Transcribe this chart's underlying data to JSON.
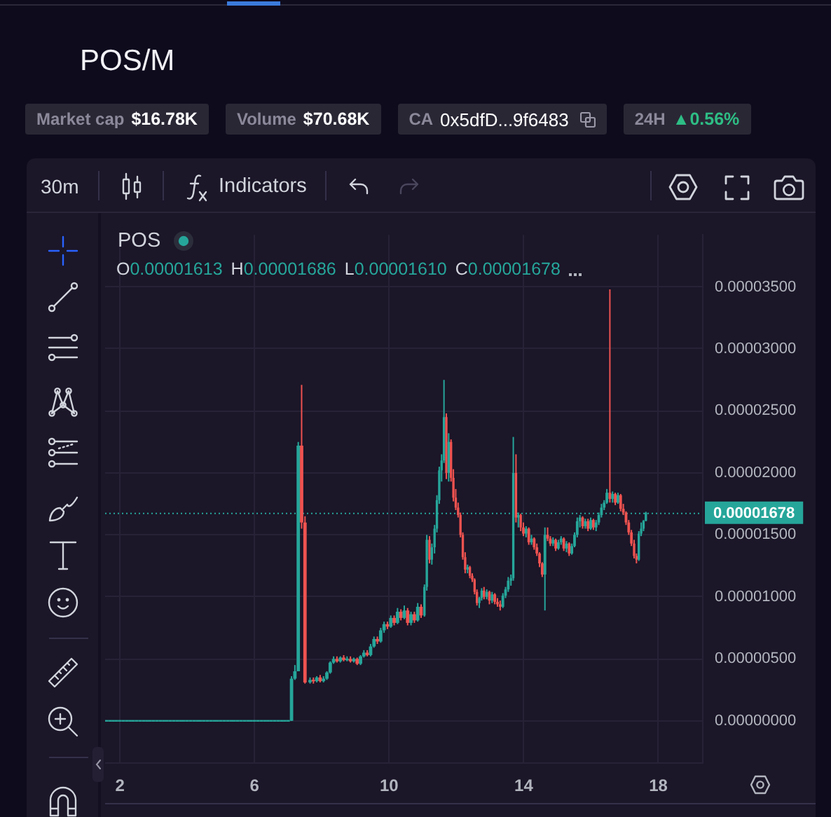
{
  "chart_data": {
    "type": "candlestick",
    "title": "POS/M",
    "annotations": [
      "Market cap",
      "$16.78K",
      "Volume",
      "$70.68K",
      "CA",
      "0x5dfD...9f6483",
      "24H",
      "▲0.56%",
      "30m",
      "Indicators",
      "POS",
      "O",
      "0.00001613",
      "H",
      "0.00001686",
      "L",
      "0.00001610",
      "C",
      "0.00001678"
    ],
    "x": [
      1.6,
      1.7,
      1.8,
      1.9,
      2.0,
      2.1,
      2.2,
      2.3,
      2.4,
      2.5,
      2.6,
      2.7,
      2.8,
      2.9,
      3.0,
      3.1,
      3.2,
      3.3,
      3.4,
      3.5,
      3.6,
      3.7,
      3.8,
      3.9,
      4.0,
      4.1,
      4.2,
      4.3,
      4.4,
      4.5,
      4.6,
      4.7,
      4.8,
      4.9,
      5.0,
      5.1,
      5.2,
      5.3,
      5.4,
      5.5,
      5.6,
      5.7,
      5.8,
      5.9,
      6.0,
      6.1,
      6.2,
      6.3,
      6.4,
      6.5,
      6.6,
      6.7,
      6.8,
      6.9,
      7.0,
      7.1,
      7.2,
      7.3,
      7.4,
      7.5,
      7.65,
      7.75,
      7.85,
      7.95,
      8.05,
      8.15,
      8.25,
      8.35,
      8.45,
      8.55,
      8.65,
      8.75,
      8.85,
      8.95,
      9.05,
      9.15,
      9.25,
      9.35,
      9.45,
      9.55,
      9.65,
      9.75,
      9.85,
      9.95,
      10.05,
      10.15,
      10.25,
      10.35,
      10.45,
      10.55,
      10.65,
      10.75,
      10.85,
      10.95,
      11.05,
      11.12,
      11.2,
      11.27,
      11.35,
      11.42,
      11.49,
      11.56,
      11.63,
      11.7,
      11.77,
      11.84,
      11.91,
      11.98,
      12.05,
      12.12,
      12.19,
      12.26,
      12.33,
      12.4,
      12.47,
      12.54,
      12.61,
      12.68,
      12.75,
      12.82,
      12.9,
      12.98,
      13.06,
      13.14,
      13.22,
      13.3,
      13.38,
      13.46,
      13.54,
      13.62,
      13.69,
      13.77,
      13.84,
      13.91,
      13.99,
      14.07,
      14.15,
      14.23,
      14.31,
      14.39,
      14.47,
      14.55,
      14.63,
      14.71,
      14.79,
      14.87,
      14.95,
      15.03,
      15.11,
      15.19,
      15.27,
      15.35,
      15.43,
      15.51,
      15.59,
      15.67,
      15.75,
      15.83,
      15.91,
      15.99,
      16.07,
      16.15,
      16.23,
      16.31,
      16.39,
      16.47,
      16.56,
      16.64,
      16.72,
      16.8,
      16.88,
      16.96,
      17.04,
      17.12,
      17.2,
      17.28,
      17.35,
      17.42,
      17.49,
      17.56,
      17.63
    ],
    "ohlc": [
      [
        0,
        0,
        0,
        0
      ],
      [
        0,
        0,
        0,
        0
      ],
      [
        0,
        0,
        0,
        0
      ],
      [
        0,
        0,
        0,
        0
      ],
      [
        0,
        0,
        0,
        0
      ],
      [
        0,
        0,
        0,
        0
      ],
      [
        0,
        0,
        0,
        0
      ],
      [
        0,
        0,
        0,
        0
      ],
      [
        0,
        0,
        0,
        0
      ],
      [
        0,
        0,
        0,
        0
      ],
      [
        0,
        0,
        0,
        0
      ],
      [
        0,
        0,
        0,
        0
      ],
      [
        0,
        0,
        0,
        0
      ],
      [
        0,
        0,
        0,
        0
      ],
      [
        0,
        0,
        0,
        0
      ],
      [
        0,
        0,
        0,
        0
      ],
      [
        0,
        0,
        0,
        0
      ],
      [
        0,
        0,
        0,
        0
      ],
      [
        0,
        0,
        0,
        0
      ],
      [
        0,
        0,
        0,
        0
      ],
      [
        0,
        0,
        0,
        0
      ],
      [
        0,
        0,
        0,
        0
      ],
      [
        0,
        0,
        0,
        0
      ],
      [
        0,
        0,
        0,
        0
      ],
      [
        0,
        0,
        0,
        0
      ],
      [
        0,
        0,
        0,
        0
      ],
      [
        0,
        0,
        0,
        0
      ],
      [
        0,
        0,
        0,
        0
      ],
      [
        0,
        0,
        0,
        0
      ],
      [
        0,
        0,
        0,
        0
      ],
      [
        0,
        0,
        0,
        0
      ],
      [
        0,
        0,
        0,
        0
      ],
      [
        0,
        0,
        0,
        0
      ],
      [
        0,
        0,
        0,
        0
      ],
      [
        0,
        0,
        0,
        0
      ],
      [
        0,
        0,
        0,
        0
      ],
      [
        0,
        0,
        0,
        0
      ],
      [
        0,
        0,
        0,
        0
      ],
      [
        0,
        0,
        0,
        0
      ],
      [
        0,
        0,
        0,
        0
      ],
      [
        0,
        0,
        0,
        0
      ],
      [
        0,
        0,
        0,
        0
      ],
      [
        0,
        0,
        0,
        0
      ],
      [
        0,
        0,
        0,
        0
      ],
      [
        0,
        0,
        0,
        0
      ],
      [
        0,
        0,
        0,
        0
      ],
      [
        0,
        0,
        0,
        0
      ],
      [
        0,
        0,
        0,
        0
      ],
      [
        0,
        0,
        0,
        0
      ],
      [
        0,
        0,
        0,
        0
      ],
      [
        0,
        0,
        0,
        0
      ],
      [
        0,
        0,
        0,
        0
      ],
      [
        0,
        0,
        0,
        0
      ],
      [
        0,
        0,
        0,
        0
      ],
      [
        0,
        0,
        0,
        0
      ],
      [
        0,
        3.6e-06,
        0,
        3.4e-06
      ],
      [
        3.4e-06,
        4.5e-06,
        3.3e-06,
        4e-06
      ],
      [
        4e-06,
        2.25e-05,
        4e-06,
        2.22e-05
      ],
      [
        2.22e-05,
        2.71e-05,
        1.55e-05,
        1.6e-05
      ],
      [
        1.6e-05,
        1.65e-05,
        3e-06,
        3.1e-06
      ],
      [
        3.1e-06,
        3.5e-06,
        3e-06,
        3.3e-06
      ],
      [
        3.3e-06,
        3.5e-06,
        3e-06,
        3.2e-06
      ],
      [
        3.2e-06,
        3.6e-06,
        3.1e-06,
        3.5e-06
      ],
      [
        3.5e-06,
        3.7e-06,
        3.1e-06,
        3.2e-06
      ],
      [
        3.2e-06,
        3.6e-06,
        3.1e-06,
        3.4e-06
      ],
      [
        3.4e-06,
        4e-06,
        3.3e-06,
        3.9e-06
      ],
      [
        3.9e-06,
        4.8e-06,
        3.8e-06,
        4.7e-06
      ],
      [
        4.7e-06,
        5.2e-06,
        4.6e-06,
        5e-06
      ],
      [
        5e-06,
        5.2e-06,
        4.7e-06,
        4.8e-06
      ],
      [
        4.8e-06,
        5.2e-06,
        4.7e-06,
        5.1e-06
      ],
      [
        5.1e-06,
        5.3e-06,
        4.8e-06,
        4.9e-06
      ],
      [
        4.9e-06,
        5.2e-06,
        4.8e-06,
        5e-06
      ],
      [
        5e-06,
        5.2e-06,
        4.7e-06,
        4.8e-06
      ],
      [
        4.8e-06,
        5.1e-06,
        4.7e-06,
        5e-06
      ],
      [
        5e-06,
        5.1e-06,
        4.5e-06,
        4.6e-06
      ],
      [
        4.6e-06,
        5.3e-06,
        4.5e-06,
        5.2e-06
      ],
      [
        5.2e-06,
        5.7e-06,
        5.1e-06,
        5.5e-06
      ],
      [
        5.5e-06,
        5.7e-06,
        5.2e-06,
        5.3e-06
      ],
      [
        5.3e-06,
        6.2e-06,
        5.2e-06,
        6e-06
      ],
      [
        6e-06,
        6.8e-06,
        5.9e-06,
        6.6e-06
      ],
      [
        6.6e-06,
        6.8e-06,
        6.2e-06,
        6.4e-06
      ],
      [
        6.4e-06,
        7.5e-06,
        6.3e-06,
        7.3e-06
      ],
      [
        7.3e-06,
        8e-06,
        7.1e-06,
        7.8e-06
      ],
      [
        7.8e-06,
        8e-06,
        7.4e-06,
        7.6e-06
      ],
      [
        7.6e-06,
        8.5e-06,
        7.5e-06,
        8.3e-06
      ],
      [
        8.3e-06,
        8.5e-06,
        7.7e-06,
        7.9e-06
      ],
      [
        7.9e-06,
        9.1e-06,
        7.8e-06,
        8.8e-06
      ],
      [
        8.8e-06,
        9e-06,
        8.1e-06,
        8.3e-06
      ],
      [
        8.3e-06,
        9.3e-06,
        8.2e-06,
        8.9e-06
      ],
      [
        8.9e-06,
        9.1e-06,
        7.7e-06,
        7.9e-06
      ],
      [
        7.9e-06,
        8.8e-06,
        7.7e-06,
        8.6e-06
      ],
      [
        8.6e-06,
        8.8e-06,
        7.9e-06,
        8.1e-06
      ],
      [
        8.1e-06,
        9.5e-06,
        8e-06,
        9.2e-06
      ],
      [
        9.2e-06,
        9.4e-06,
        8.3e-06,
        8.5e-06
      ],
      [
        8.5e-06,
        1.1e-05,
        8.4e-06,
        1.08e-05
      ],
      [
        1.08e-05,
        1.5e-05,
        1.05e-05,
        1.46e-05
      ],
      [
        1.46e-05,
        1.49e-05,
        1.27e-05,
        1.3e-05
      ],
      [
        1.3e-05,
        1.43e-05,
        1.26e-05,
        1.4e-05
      ],
      [
        1.4e-05,
        1.58e-05,
        1.35e-05,
        1.55e-05
      ],
      [
        1.55e-05,
        1.82e-05,
        1.52e-05,
        1.78e-05
      ],
      [
        1.78e-05,
        2.05e-05,
        1.75e-05,
        2.02e-05
      ],
      [
        2.02e-05,
        2.15e-05,
        1.93e-05,
        2.1e-05
      ],
      [
        2.1e-05,
        2.75e-05,
        2.08e-05,
        2.45e-05
      ],
      [
        2.45e-05,
        2.48e-05,
        1.95e-05,
        2e-05
      ],
      [
        2e-05,
        2.32e-05,
        1.93e-05,
        2.25e-05
      ],
      [
        2.25e-05,
        2.27e-05,
        1.93e-05,
        1.96e-05
      ],
      [
        1.96e-05,
        2.03e-05,
        1.77e-05,
        1.8e-05
      ],
      [
        1.8e-05,
        1.87e-05,
        1.7e-05,
        1.72e-05
      ],
      [
        1.72e-05,
        1.76e-05,
        1.64e-05,
        1.66e-05
      ],
      [
        1.66e-05,
        1.68e-05,
        1.48e-05,
        1.5e-05
      ],
      [
        1.5e-05,
        1.52e-05,
        1.3e-05,
        1.32e-05
      ],
      [
        1.32e-05,
        1.36e-05,
        1.19e-05,
        1.22e-05
      ],
      [
        1.22e-05,
        1.26e-05,
        1.19e-05,
        1.24e-05
      ],
      [
        1.24e-05,
        1.25e-05,
        1.15e-05,
        1.17e-05
      ],
      [
        1.17e-05,
        1.19e-05,
        1.12e-05,
        1.14e-05
      ],
      [
        1.14e-05,
        1.15e-05,
        1.02e-05,
        1.04e-05
      ],
      [
        1.04e-05,
        1.06e-05,
        9.3e-06,
        9.5e-06
      ],
      [
        9.5e-06,
        1e-05,
        9.1e-06,
        9.9e-06
      ],
      [
        9.9e-06,
        1.07e-05,
        9.7e-06,
        1.05e-05
      ],
      [
        1.05e-05,
        1.08e-05,
        9.8e-06,
        1e-05
      ],
      [
        1e-05,
        1.06e-05,
        9.8e-06,
        1.04e-05
      ],
      [
        1.04e-05,
        1.05e-05,
        9.4e-06,
        9.7e-06
      ],
      [
        9.7e-06,
        1.04e-05,
        9.5e-06,
        1.02e-05
      ],
      [
        1.02e-05,
        1.03e-05,
        9.4e-06,
        9.6e-06
      ],
      [
        9.6e-06,
        9.9e-06,
        9.2e-06,
        9.4e-06
      ],
      [
        9.4e-06,
        9.7e-06,
        8.9e-06,
        9.2e-06
      ],
      [
        9.2e-06,
        1.03e-05,
        9.1e-06,
        1.01e-05
      ],
      [
        1.01e-05,
        1.08e-05,
        9.9e-06,
        1.06e-05
      ],
      [
        1.06e-05,
        1.16e-05,
        1.04e-05,
        1.13e-05
      ],
      [
        1.13e-05,
        1.18e-05,
        1.09e-05,
        1.15e-05
      ],
      [
        1.15e-05,
        2.29e-05,
        1.13e-05,
        2e-05
      ],
      [
        2e-05,
        2.15e-05,
        1.6e-05,
        1.64e-05
      ],
      [
        1.64e-05,
        1.68e-05,
        1.56e-05,
        1.66e-05
      ],
      [
        1.66e-05,
        1.67e-05,
        1.53e-05,
        1.56e-05
      ],
      [
        1.56e-05,
        1.6e-05,
        1.49e-05,
        1.51e-05
      ],
      [
        1.51e-05,
        1.57e-05,
        1.48e-05,
        1.55e-05
      ],
      [
        1.55e-05,
        1.56e-05,
        1.42e-05,
        1.44e-05
      ],
      [
        1.44e-05,
        1.5e-05,
        1.42e-05,
        1.47e-05
      ],
      [
        1.47e-05,
        1.48e-05,
        1.38e-05,
        1.4e-05
      ],
      [
        1.4e-05,
        1.43e-05,
        1.33e-05,
        1.35e-05
      ],
      [
        1.35e-05,
        1.36e-05,
        1.24e-05,
        1.27e-05
      ],
      [
        1.27e-05,
        1.28e-05,
        1.16e-05,
        1.18e-05
      ],
      [
        1.18e-05,
        1.56e-05,
        8.9e-06,
        1.5e-05
      ],
      [
        1.5e-05,
        1.56e-05,
        1.45e-05,
        1.47e-05
      ],
      [
        1.47e-05,
        1.49e-05,
        1.41e-05,
        1.43e-05
      ],
      [
        1.43e-05,
        1.48e-05,
        1.41e-05,
        1.46e-05
      ],
      [
        1.46e-05,
        1.47e-05,
        1.37e-05,
        1.39e-05
      ],
      [
        1.39e-05,
        1.46e-05,
        1.38e-05,
        1.44e-05
      ],
      [
        1.44e-05,
        1.49e-05,
        1.42e-05,
        1.47e-05
      ],
      [
        1.47e-05,
        1.48e-05,
        1.37e-05,
        1.39e-05
      ],
      [
        1.39e-05,
        1.45e-05,
        1.36e-05,
        1.43e-05
      ],
      [
        1.43e-05,
        1.44e-05,
        1.33e-05,
        1.35e-05
      ],
      [
        1.35e-05,
        1.43e-05,
        1.34e-05,
        1.41e-05
      ],
      [
        1.41e-05,
        1.52e-05,
        1.4e-05,
        1.5e-05
      ],
      [
        1.5e-05,
        1.64e-05,
        1.48e-05,
        1.61e-05
      ],
      [
        1.61e-05,
        1.66e-05,
        1.56e-05,
        1.64e-05
      ],
      [
        1.64e-05,
        1.65e-05,
        1.55e-05,
        1.57e-05
      ],
      [
        1.57e-05,
        1.63e-05,
        1.55e-05,
        1.61e-05
      ],
      [
        1.61e-05,
        1.63e-05,
        1.53e-05,
        1.55e-05
      ],
      [
        1.55e-05,
        1.64e-05,
        1.54e-05,
        1.62e-05
      ],
      [
        1.62e-05,
        1.63e-05,
        1.54e-05,
        1.56e-05
      ],
      [
        1.56e-05,
        1.62e-05,
        1.53e-05,
        1.6e-05
      ],
      [
        1.6e-05,
        1.68e-05,
        1.58e-05,
        1.66e-05
      ],
      [
        1.66e-05,
        1.75e-05,
        1.64e-05,
        1.72e-05
      ],
      [
        1.72e-05,
        1.78e-05,
        1.7e-05,
        1.76e-05
      ],
      [
        1.76e-05,
        1.87e-05,
        1.75e-05,
        1.84e-05
      ],
      [
        1.84e-05,
        3.48e-05,
        1.76e-05,
        1.79e-05
      ],
      [
        1.79e-05,
        1.85e-05,
        1.76e-05,
        1.83e-05
      ],
      [
        1.83e-05,
        1.84e-05,
        1.74e-05,
        1.76e-05
      ],
      [
        1.76e-05,
        1.84e-05,
        1.75e-05,
        1.82e-05
      ],
      [
        1.82e-05,
        1.83e-05,
        1.69e-05,
        1.71e-05
      ],
      [
        1.71e-05,
        1.75e-05,
        1.66e-05,
        1.68e-05
      ],
      [
        1.68e-05,
        1.69e-05,
        1.58e-05,
        1.6e-05
      ],
      [
        1.6e-05,
        1.62e-05,
        1.5e-05,
        1.52e-05
      ],
      [
        1.52e-05,
        1.54e-05,
        1.41e-05,
        1.43e-05
      ],
      [
        1.43e-05,
        1.46e-05,
        1.31e-05,
        1.33e-05
      ],
      [
        1.33e-05,
        1.35e-05,
        1.27e-05,
        1.3e-05
      ],
      [
        1.3e-05,
        1.53e-05,
        1.29e-05,
        1.51e-05
      ],
      [
        1.51e-05,
        1.6e-05,
        1.49e-05,
        1.55e-05
      ],
      [
        1.55e-05,
        1.62e-05,
        1.53e-05,
        1.613e-05
      ],
      [
        1.613e-05,
        1.686e-05,
        1.61e-05,
        1.678e-05
      ]
    ],
    "colors": [
      "#26a69a",
      "#26a69a",
      "#26a69a",
      "#26a69a",
      "#26a69a",
      "#26a69a",
      "#26a69a",
      "#26a69a",
      "#26a69a",
      "#26a69a",
      "#26a69a",
      "#26a69a",
      "#26a69a",
      "#26a69a",
      "#26a69a",
      "#26a69a",
      "#26a69a",
      "#26a69a",
      "#26a69a",
      "#26a69a",
      "#26a69a",
      "#26a69a",
      "#26a69a",
      "#26a69a",
      "#26a69a",
      "#26a69a",
      "#26a69a",
      "#26a69a",
      "#26a69a",
      "#26a69a",
      "#26a69a",
      "#26a69a",
      "#26a69a",
      "#26a69a",
      "#26a69a",
      "#26a69a",
      "#26a69a",
      "#26a69a",
      "#26a69a",
      "#26a69a",
      "#26a69a",
      "#26a69a",
      "#26a69a",
      "#26a69a",
      "#26a69a",
      "#26a69a",
      "#26a69a",
      "#26a69a",
      "#26a69a",
      "#26a69a",
      "#26a69a",
      "#26a69a",
      "#26a69a",
      "#26a69a",
      "#26a69a",
      "#26a69a",
      "#26a69a",
      "#26a69a",
      "#ef5350",
      "#ef5350",
      "#26a69a",
      "#ef5350",
      "#26a69a",
      "#ef5350",
      "#26a69a",
      "#26a69a",
      "#26a69a",
      "#26a69a",
      "#ef5350",
      "#26a69a",
      "#ef5350",
      "#26a69a",
      "#ef5350",
      "#26a69a",
      "#ef5350",
      "#26a69a",
      "#26a69a",
      "#ef5350",
      "#26a69a",
      "#26a69a",
      "#ef5350",
      "#26a69a",
      "#26a69a",
      "#ef5350",
      "#26a69a",
      "#ef5350",
      "#26a69a",
      "#ef5350",
      "#26a69a",
      "#ef5350",
      "#26a69a",
      "#ef5350",
      "#26a69a",
      "#ef5350",
      "#26a69a",
      "#26a69a",
      "#ef5350",
      "#26a69a",
      "#26a69a",
      "#26a69a",
      "#26a69a",
      "#26a69a",
      "#26a69a",
      "#ef5350",
      "#26a69a",
      "#ef5350",
      "#ef5350",
      "#ef5350",
      "#ef5350",
      "#ef5350",
      "#ef5350",
      "#ef5350",
      "#26a69a",
      "#ef5350",
      "#ef5350",
      "#ef5350",
      "#ef5350",
      "#26a69a",
      "#26a69a",
      "#ef5350",
      "#26a69a",
      "#ef5350",
      "#26a69a",
      "#ef5350",
      "#ef5350",
      "#ef5350",
      "#26a69a",
      "#26a69a",
      "#26a69a",
      "#26a69a",
      "#26a69a",
      "#ef5350",
      "#26a69a",
      "#ef5350",
      "#ef5350",
      "#26a69a",
      "#ef5350",
      "#26a69a",
      "#ef5350",
      "#ef5350",
      "#ef5350",
      "#ef5350",
      "#26a69a",
      "#ef5350",
      "#ef5350",
      "#26a69a",
      "#ef5350",
      "#26a69a",
      "#26a69a",
      "#ef5350",
      "#26a69a",
      "#ef5350",
      "#26a69a",
      "#26a69a",
      "#26a69a",
      "#26a69a",
      "#ef5350",
      "#26a69a",
      "#ef5350",
      "#26a69a",
      "#ef5350",
      "#26a69a",
      "#26a69a",
      "#26a69a",
      "#26a69a",
      "#26a69a",
      "#ef5350",
      "#26a69a",
      "#ef5350",
      "#26a69a",
      "#ef5350",
      "#ef5350",
      "#ef5350",
      "#ef5350",
      "#ef5350",
      "#ef5350",
      "#ef5350",
      "#26a69a",
      "#26a69a",
      "#26a69a",
      "#26a69a"
    ],
    "xlim": [
      1.56,
      19.3
    ],
    "xticks": [
      2,
      6,
      10,
      14,
      18
    ],
    "ylim": [
      -3.35e-06,
      3.92e-05
    ],
    "yticks": [
      {
        "value": 0,
        "label": "0.00000000"
      },
      {
        "value": 5e-06,
        "label": "0.00000500"
      },
      {
        "value": 1e-05,
        "label": "0.00001000"
      },
      {
        "value": 1.5e-05,
        "label": "0.00001500"
      },
      {
        "value": 2e-05,
        "label": "0.00002000"
      },
      {
        "value": 2.5e-05,
        "label": "0.00002500"
      },
      {
        "value": 3e-05,
        "label": "0.00003000"
      },
      {
        "value": 3.5e-05,
        "label": "0.00003500"
      }
    ],
    "grid": true,
    "ref_lines": [
      {
        "axis": "y",
        "value": 1.678e-05,
        "label": "0.00001678",
        "color": "#26a69a",
        "line_style": "dotted"
      }
    ]
  }
}
